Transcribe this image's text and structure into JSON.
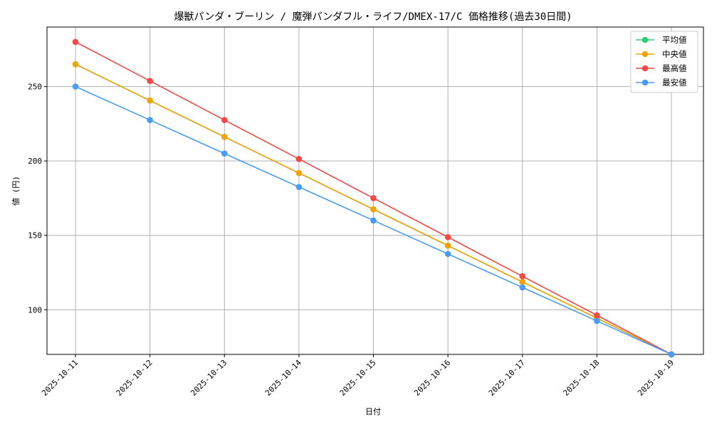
{
  "chart_data": {
    "type": "line",
    "title": "爆獣パンダ・ブーリン / 魔弾パンダフル・ライフ/DMEX-17/C 価格推移(過去30日間)",
    "xlabel": "日付",
    "ylabel": "値 (円)",
    "categories": [
      "2025-10-11",
      "2025-10-12",
      "2025-10-13",
      "2025-10-14",
      "2025-10-15",
      "2025-10-16",
      "2025-10-17",
      "2025-10-18",
      "2025-10-19"
    ],
    "ylim": [
      70,
      290
    ],
    "yticks": [
      100,
      150,
      200,
      250
    ],
    "grid": true,
    "legend_position": "top-right",
    "series": [
      {
        "name": "平均値",
        "color": "#2ecc71",
        "values": [
          265,
          240.6,
          216.2,
          191.9,
          167.5,
          143.1,
          118.7,
          94.4,
          70
        ]
      },
      {
        "name": "中央値",
        "color": "#f0a30a",
        "values": [
          265,
          240.6,
          216.2,
          191.9,
          167.5,
          143.1,
          118.7,
          94.4,
          70
        ]
      },
      {
        "name": "最高値",
        "color": "#f44747",
        "values": [
          280,
          253.8,
          227.5,
          201.3,
          175,
          148.8,
          122.5,
          96.3,
          70
        ]
      },
      {
        "name": "最安値",
        "color": "#4a9bf5",
        "values": [
          250,
          227.5,
          205,
          182.5,
          160,
          137.5,
          115,
          92.5,
          70
        ]
      }
    ]
  }
}
